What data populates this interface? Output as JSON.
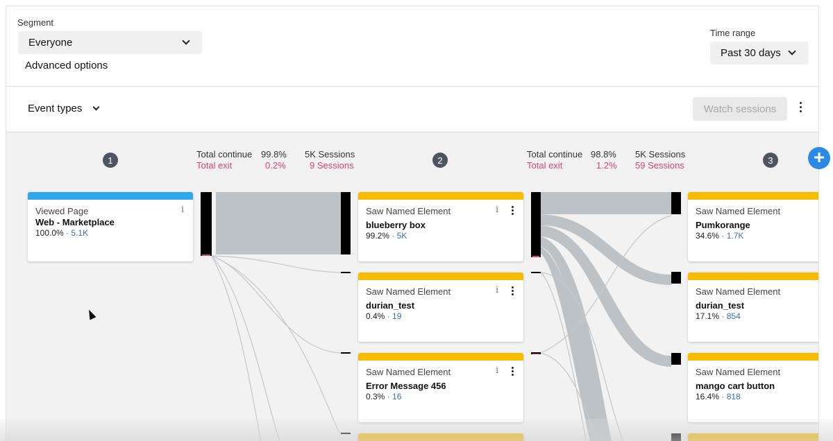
{
  "filters": {
    "segment_label": "Segment",
    "segment_value": "Everyone",
    "advanced_options": "Advanced options",
    "time_range_label": "Time range",
    "time_range_value": "Past 30 days"
  },
  "toolbar": {
    "event_types": "Event types",
    "watch_sessions": "Watch sessions"
  },
  "steps": [
    "1",
    "2",
    "3"
  ],
  "transitions": [
    {
      "continue_label": "Total continue",
      "continue_pct": "99.8%",
      "continue_sessions": "5K Sessions",
      "exit_label": "Total exit",
      "exit_pct": "0.2%",
      "exit_sessions": "9 Sessions"
    },
    {
      "continue_label": "Total continue",
      "continue_pct": "98.8%",
      "continue_sessions": "5K Sessions",
      "exit_label": "Total exit",
      "exit_pct": "1.2%",
      "exit_sessions": "59 Sessions"
    }
  ],
  "columns": [
    {
      "cards": [
        {
          "type": "Viewed Page",
          "name": "Web - Marketplace",
          "pct": "100.0%",
          "count": "5.1K"
        }
      ]
    },
    {
      "cards": [
        {
          "type": "Saw Named Element",
          "name": "blueberry box",
          "pct": "99.2%",
          "count": "5K"
        },
        {
          "type": "Saw Named Element",
          "name": "durian_test",
          "pct": "0.4%",
          "count": "19"
        },
        {
          "type": "Saw Named Element",
          "name": "Error Message 456",
          "pct": "0.3%",
          "count": "16"
        }
      ]
    },
    {
      "cards": [
        {
          "type": "Saw Named Element",
          "name": "Pumkorange",
          "pct": "34.6%",
          "count": "1.7K"
        },
        {
          "type": "Saw Named Element",
          "name": "durian_test",
          "pct": "17.1%",
          "count": "854"
        },
        {
          "type": "Saw Named Element",
          "name": "mango cart button",
          "pct": "16.4%",
          "count": "818"
        }
      ]
    }
  ],
  "colors": {
    "page_bar": "#2ea8ea",
    "element_bar": "#f5bc00",
    "exit": "#e0436b",
    "flow": "#bcc2c6"
  },
  "icons": [
    "chevron-down-icon",
    "info-icon",
    "kebab-menu-icon",
    "plus-circle-icon",
    "cursor-icon"
  ]
}
